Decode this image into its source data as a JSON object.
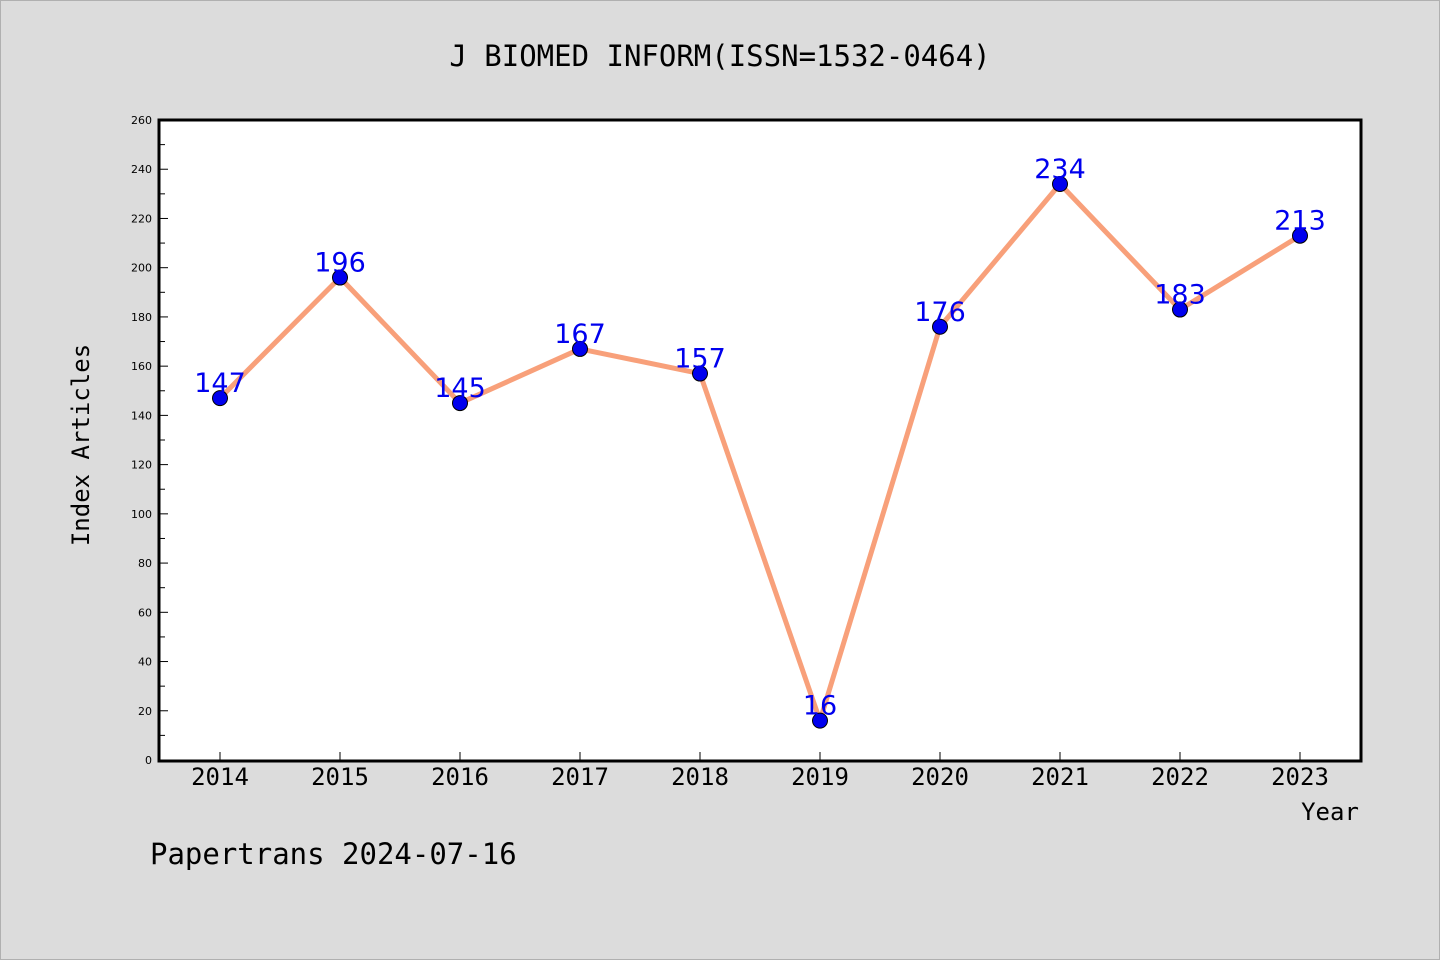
{
  "chart_data": {
    "type": "line",
    "title": "J BIOMED INFORM(ISSN=1532-0464)",
    "xlabel": "Year",
    "ylabel": "Index Articles",
    "categories": [
      "2014",
      "2015",
      "2016",
      "2017",
      "2018",
      "2019",
      "2020",
      "2021",
      "2022",
      "2023"
    ],
    "series": [
      {
        "values": [
          147,
          196,
          145,
          167,
          157,
          16,
          176,
          234,
          183,
          213
        ]
      }
    ],
    "data_labels": [
      "147",
      "196",
      "145",
      "167",
      "157",
      "16",
      "176",
      "234",
      "183",
      "213"
    ],
    "ylim": [
      0,
      260
    ],
    "y_ticks": [
      0,
      20,
      40,
      60,
      80,
      100,
      120,
      140,
      160,
      180,
      200,
      220,
      240,
      260
    ],
    "y_tick_labels": [
      "0",
      "20",
      "40",
      "60",
      "80",
      "100",
      "120",
      "140",
      "160",
      "180",
      "200",
      "220",
      "240",
      "260"
    ],
    "grid": false,
    "line_color": "#f8a07a",
    "marker_color": "#0000ee",
    "label_color": "#0000ee",
    "plot_background": "#ffffff",
    "figure_background": "#dcdcdc"
  },
  "footer": {
    "watermark": "Papertrans 2024-07-16"
  }
}
